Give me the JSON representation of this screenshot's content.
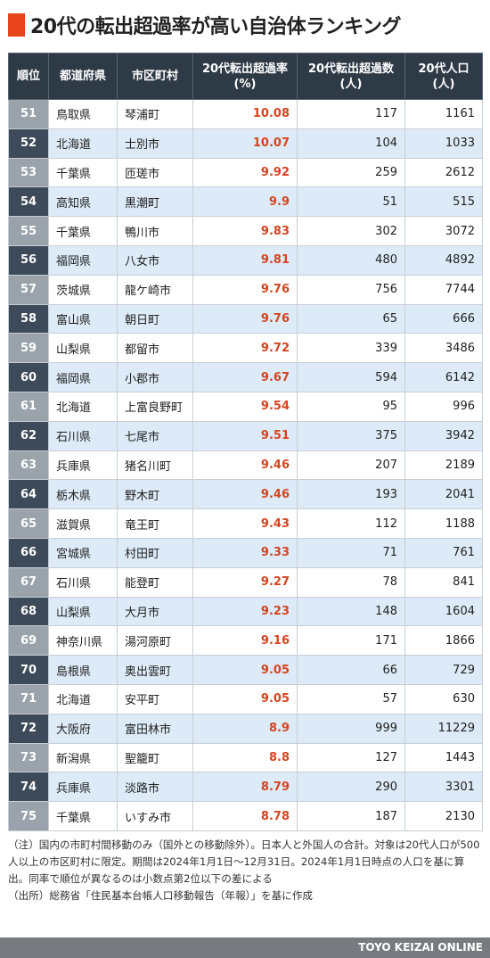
{
  "title": "20代の転出超過率が高い自治体ランキング",
  "headers": {
    "rank": "順位",
    "prefecture": "都道府県",
    "municipality": "市区町村",
    "rate_line1": "20代転出超過率",
    "rate_line2": "(%)",
    "excess_line1": "20代転出超過数",
    "excess_line2": "(人)",
    "pop_line1": "20代人口",
    "pop_line2": "(人)"
  },
  "rows": [
    {
      "rank": "51",
      "pref": "鳥取県",
      "city": "琴浦町",
      "rate": "10.08",
      "excess": "117",
      "pop": "1161"
    },
    {
      "rank": "52",
      "pref": "北海道",
      "city": "士別市",
      "rate": "10.07",
      "excess": "104",
      "pop": "1033"
    },
    {
      "rank": "53",
      "pref": "千葉県",
      "city": "匝瑳市",
      "rate": "9.92",
      "excess": "259",
      "pop": "2612"
    },
    {
      "rank": "54",
      "pref": "高知県",
      "city": "黒潮町",
      "rate": "9.9",
      "excess": "51",
      "pop": "515"
    },
    {
      "rank": "55",
      "pref": "千葉県",
      "city": "鴨川市",
      "rate": "9.83",
      "excess": "302",
      "pop": "3072"
    },
    {
      "rank": "56",
      "pref": "福岡県",
      "city": "八女市",
      "rate": "9.81",
      "excess": "480",
      "pop": "4892"
    },
    {
      "rank": "57",
      "pref": "茨城県",
      "city": "龍ケ崎市",
      "rate": "9.76",
      "excess": "756",
      "pop": "7744"
    },
    {
      "rank": "58",
      "pref": "富山県",
      "city": "朝日町",
      "rate": "9.76",
      "excess": "65",
      "pop": "666"
    },
    {
      "rank": "59",
      "pref": "山梨県",
      "city": "都留市",
      "rate": "9.72",
      "excess": "339",
      "pop": "3486"
    },
    {
      "rank": "60",
      "pref": "福岡県",
      "city": "小郡市",
      "rate": "9.67",
      "excess": "594",
      "pop": "6142"
    },
    {
      "rank": "61",
      "pref": "北海道",
      "city": "上富良野町",
      "rate": "9.54",
      "excess": "95",
      "pop": "996"
    },
    {
      "rank": "62",
      "pref": "石川県",
      "city": "七尾市",
      "rate": "9.51",
      "excess": "375",
      "pop": "3942"
    },
    {
      "rank": "63",
      "pref": "兵庫県",
      "city": "猪名川町",
      "rate": "9.46",
      "excess": "207",
      "pop": "2189"
    },
    {
      "rank": "64",
      "pref": "栃木県",
      "city": "野木町",
      "rate": "9.46",
      "excess": "193",
      "pop": "2041"
    },
    {
      "rank": "65",
      "pref": "滋賀県",
      "city": "竜王町",
      "rate": "9.43",
      "excess": "112",
      "pop": "1188"
    },
    {
      "rank": "66",
      "pref": "宮城県",
      "city": "村田町",
      "rate": "9.33",
      "excess": "71",
      "pop": "761"
    },
    {
      "rank": "67",
      "pref": "石川県",
      "city": "能登町",
      "rate": "9.27",
      "excess": "78",
      "pop": "841"
    },
    {
      "rank": "68",
      "pref": "山梨県",
      "city": "大月市",
      "rate": "9.23",
      "excess": "148",
      "pop": "1604"
    },
    {
      "rank": "69",
      "pref": "神奈川県",
      "city": "湯河原町",
      "rate": "9.16",
      "excess": "171",
      "pop": "1866"
    },
    {
      "rank": "70",
      "pref": "島根県",
      "city": "奥出雲町",
      "rate": "9.05",
      "excess": "66",
      "pop": "729"
    },
    {
      "rank": "71",
      "pref": "北海道",
      "city": "安平町",
      "rate": "9.05",
      "excess": "57",
      "pop": "630"
    },
    {
      "rank": "72",
      "pref": "大阪府",
      "city": "富田林市",
      "rate": "8.9",
      "excess": "999",
      "pop": "11229"
    },
    {
      "rank": "73",
      "pref": "新潟県",
      "city": "聖籠町",
      "rate": "8.8",
      "excess": "127",
      "pop": "1443"
    },
    {
      "rank": "74",
      "pref": "兵庫県",
      "city": "淡路市",
      "rate": "8.79",
      "excess": "290",
      "pop": "3301"
    },
    {
      "rank": "75",
      "pref": "千葉県",
      "city": "いすみ市",
      "rate": "8.78",
      "excess": "187",
      "pop": "2130"
    }
  ],
  "notes": {
    "note_text": "（注）国内の市町村間移動のみ（国外との移動除外）。日本人と外国人の合計。対象は20代人口が500人以上の市区町村に限定。期間は2024年1月1日～12月31日。2024年1月1日時点の人口を基に算出。同率で順位が異なるのは小数点第2位以下の差による",
    "source_text": "（出所）総務省「住民基本台帳人口移動報告（年報）」を基に作成"
  },
  "footer": {
    "brand": "TOYO KEIZAI ONLINE"
  },
  "colors": {
    "accent": "#e8451d",
    "header_bg": "#2f3a47",
    "rate_text": "#d9431e",
    "row_stripe": "#dcebf7",
    "rank_light": "#9aa3ac",
    "rank_dark": "#3c4a59",
    "footer_bg": "#777b80"
  }
}
